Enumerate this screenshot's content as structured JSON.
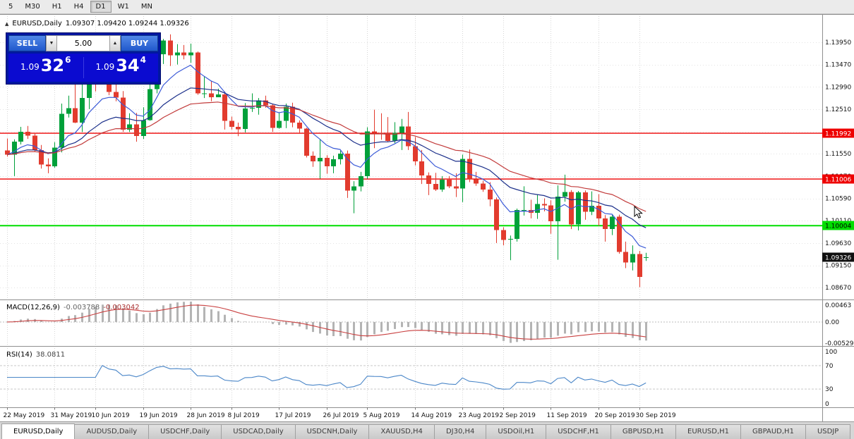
{
  "toolbar": {
    "timeframes": [
      {
        "label": "5",
        "active": false
      },
      {
        "label": "M30",
        "active": false
      },
      {
        "label": "H1",
        "active": false
      },
      {
        "label": "H4",
        "active": false
      },
      {
        "label": "D1",
        "active": true
      },
      {
        "label": "W1",
        "active": false
      },
      {
        "label": "MN",
        "active": false
      }
    ]
  },
  "icons": {
    "collapse": "▲",
    "volume_down": "▼",
    "volume_up": "▲"
  },
  "chart_header": {
    "symbol": "EURUSD,Daily",
    "ohlc": "1.09307 1.09420 1.09244 1.09326"
  },
  "trade_panel": {
    "sell_label": "SELL",
    "buy_label": "BUY",
    "volume": "5.00",
    "sell_price": {
      "prefix": "1.09",
      "big": "32",
      "sup": "6"
    },
    "buy_price": {
      "prefix": "1.09",
      "big": "34",
      "sup": "4"
    }
  },
  "macd_label": {
    "name": "MACD(12,26,9)",
    "main_value": "-0.003788",
    "signal_value": "-0.003042"
  },
  "rsi_label": {
    "name": "RSI(14)",
    "value": "38.0811"
  },
  "chart_data": {
    "type": "candlestick",
    "symbol": "EURUSD",
    "timeframe": "Daily",
    "current_ohlc": {
      "open": 1.09307,
      "high": 1.0942,
      "low": 1.09244,
      "close": 1.09326
    },
    "price_range": {
      "min": 1.0843,
      "max": 1.1451
    },
    "y_axis_labels": [
      "1.13950",
      "1.13470",
      "1.12990",
      "1.12510",
      "1.12030",
      "1.11550",
      "1.11070",
      "1.10590",
      "1.10110",
      "1.09630",
      "1.09150",
      "1.08670"
    ],
    "x_ticks": [
      {
        "i": 0,
        "label": "22 May 2019"
      },
      {
        "i": 7,
        "label": "31 May 2019"
      },
      {
        "i": 13,
        "label": "10 Jun 2019"
      },
      {
        "i": 20,
        "label": "19 Jun 2019"
      },
      {
        "i": 27,
        "label": "28 Jun 2019"
      },
      {
        "i": 33,
        "label": "8 Jul 2019"
      },
      {
        "i": 40,
        "label": "17 Jul 2019"
      },
      {
        "i": 47,
        "label": "26 Jul 2019"
      },
      {
        "i": 53,
        "label": "5 Aug 2019"
      },
      {
        "i": 60,
        "label": "14 Aug 2019"
      },
      {
        "i": 67,
        "label": "23 Aug 2019"
      },
      {
        "i": 73,
        "label": "2 Sep 2019"
      },
      {
        "i": 80,
        "label": "11 Sep 2019"
      },
      {
        "i": 87,
        "label": "20 Sep 2019"
      },
      {
        "i": 93,
        "label": "30 Sep 2019"
      }
    ],
    "candles": [
      [
        1.1162,
        1.1188,
        1.1149,
        1.1153
      ],
      [
        1.1153,
        1.1186,
        1.1107,
        1.1181
      ],
      [
        1.1181,
        1.1213,
        1.1175,
        1.1202
      ],
      [
        1.1202,
        1.1215,
        1.1187,
        1.1194
      ],
      [
        1.1194,
        1.12,
        1.1159,
        1.1163
      ],
      [
        1.1163,
        1.1174,
        1.1123,
        1.1132
      ],
      [
        1.1132,
        1.1145,
        1.1113,
        1.1128
      ],
      [
        1.1128,
        1.118,
        1.1125,
        1.1168
      ],
      [
        1.1168,
        1.1263,
        1.1158,
        1.1241
      ],
      [
        1.1241,
        1.128,
        1.1233,
        1.1253
      ],
      [
        1.1253,
        1.1307,
        1.1221,
        1.1222
      ],
      [
        1.1222,
        1.1309,
        1.1202,
        1.1275
      ],
      [
        1.1275,
        1.1348,
        1.1251,
        1.1334
      ],
      [
        1.1334,
        1.134,
        1.1289,
        1.1312
      ],
      [
        1.1312,
        1.1337,
        1.1306,
        1.1325
      ],
      [
        1.1325,
        1.1344,
        1.1281,
        1.1288
      ],
      [
        1.1288,
        1.1305,
        1.1268,
        1.1276
      ],
      [
        1.1276,
        1.129,
        1.1202,
        1.1207
      ],
      [
        1.1207,
        1.1242,
        1.1202,
        1.1218
      ],
      [
        1.1218,
        1.1243,
        1.1181,
        1.1193
      ],
      [
        1.1193,
        1.1255,
        1.1187,
        1.1227
      ],
      [
        1.1227,
        1.1317,
        1.1226,
        1.1294
      ],
      [
        1.1294,
        1.1378,
        1.1285,
        1.1369
      ],
      [
        1.1369,
        1.1402,
        1.1348,
        1.1399
      ],
      [
        1.1399,
        1.1412,
        1.1344,
        1.1367
      ],
      [
        1.1367,
        1.1391,
        1.1347,
        1.1373
      ],
      [
        1.1373,
        1.1389,
        1.1358,
        1.1367
      ],
      [
        1.1367,
        1.1392,
        1.1351,
        1.1373
      ],
      [
        1.1373,
        1.1375,
        1.1282,
        1.1285
      ],
      [
        1.1285,
        1.1322,
        1.1275,
        1.1285
      ],
      [
        1.1285,
        1.1311,
        1.1268,
        1.1277
      ],
      [
        1.1277,
        1.1295,
        1.1277,
        1.1283
      ],
      [
        1.1283,
        1.1289,
        1.1207,
        1.1226
      ],
      [
        1.1226,
        1.1235,
        1.1207,
        1.1213
      ],
      [
        1.1213,
        1.1222,
        1.1193,
        1.1208
      ],
      [
        1.1208,
        1.1264,
        1.1201,
        1.1252
      ],
      [
        1.1252,
        1.1285,
        1.1245,
        1.1254
      ],
      [
        1.1254,
        1.1275,
        1.1239,
        1.127
      ],
      [
        1.127,
        1.128,
        1.1254,
        1.1259
      ],
      [
        1.1259,
        1.1263,
        1.1202,
        1.1211
      ],
      [
        1.1211,
        1.1243,
        1.1209,
        1.1226
      ],
      [
        1.1226,
        1.1263,
        1.121,
        1.1256
      ],
      [
        1.1256,
        1.1265,
        1.1212,
        1.1222
      ],
      [
        1.1222,
        1.1227,
        1.1198,
        1.1209
      ],
      [
        1.1209,
        1.1211,
        1.1147,
        1.1151
      ],
      [
        1.1151,
        1.116,
        1.1127,
        1.1139
      ],
      [
        1.1139,
        1.1187,
        1.1101,
        1.1146
      ],
      [
        1.1146,
        1.1152,
        1.1112,
        1.1128
      ],
      [
        1.1128,
        1.1151,
        1.1113,
        1.1143
      ],
      [
        1.1143,
        1.1162,
        1.1132,
        1.1155
      ],
      [
        1.1155,
        1.1162,
        1.106,
        1.1076
      ],
      [
        1.1076,
        1.1096,
        1.1027,
        1.1085
      ],
      [
        1.1085,
        1.1116,
        1.1074,
        1.1107
      ],
      [
        1.1107,
        1.1212,
        1.1101,
        1.1203
      ],
      [
        1.1203,
        1.125,
        1.1167,
        1.12
      ],
      [
        1.12,
        1.1242,
        1.1185,
        1.1199
      ],
      [
        1.1199,
        1.1234,
        1.118,
        1.1183
      ],
      [
        1.1183,
        1.1223,
        1.1178,
        1.12
      ],
      [
        1.12,
        1.123,
        1.1163,
        1.1214
      ],
      [
        1.1214,
        1.1245,
        1.1163,
        1.1171
      ],
      [
        1.1171,
        1.1191,
        1.113,
        1.1139
      ],
      [
        1.1139,
        1.1163,
        1.109,
        1.1108
      ],
      [
        1.1108,
        1.1115,
        1.1066,
        1.109
      ],
      [
        1.109,
        1.1114,
        1.1075,
        1.1078
      ],
      [
        1.1078,
        1.1107,
        1.1073,
        1.1099
      ],
      [
        1.1099,
        1.1107,
        1.1081,
        1.1085
      ],
      [
        1.1085,
        1.1113,
        1.1062,
        1.108
      ],
      [
        1.108,
        1.1153,
        1.1051,
        1.1144
      ],
      [
        1.1144,
        1.1164,
        1.1094,
        1.11
      ],
      [
        1.11,
        1.1116,
        1.1086,
        1.1091
      ],
      [
        1.1091,
        1.1097,
        1.1073,
        1.1078
      ],
      [
        1.1078,
        1.1094,
        1.1042,
        1.1057
      ],
      [
        1.1057,
        1.1061,
        1.0963,
        1.0991
      ],
      [
        1.0991,
        1.0997,
        1.0958,
        1.097
      ],
      [
        1.097,
        1.0979,
        1.0926,
        1.0972
      ],
      [
        1.0972,
        1.1037,
        1.0966,
        1.1034
      ],
      [
        1.1034,
        1.1085,
        1.1022,
        1.1034
      ],
      [
        1.1034,
        1.1056,
        1.1016,
        1.1028
      ],
      [
        1.1028,
        1.1067,
        1.1015,
        1.1047
      ],
      [
        1.1047,
        1.1059,
        1.1031,
        1.1044
      ],
      [
        1.1044,
        1.1055,
        1.0983,
        1.101
      ],
      [
        1.101,
        1.1087,
        1.0927,
        1.1063
      ],
      [
        1.1063,
        1.111,
        1.1052,
        1.1073
      ],
      [
        1.1073,
        1.1077,
        1.0993,
        1.1003
      ],
      [
        1.1003,
        1.1075,
        1.099,
        1.1072
      ],
      [
        1.1072,
        1.1076,
        1.1013,
        1.103
      ],
      [
        1.103,
        1.1074,
        1.1023,
        1.1043
      ],
      [
        1.1043,
        1.1068,
        1.1,
        1.1016
      ],
      [
        1.1016,
        1.1023,
        1.0966,
        1.0993
      ],
      [
        1.0993,
        1.1024,
        1.098,
        1.102
      ],
      [
        1.102,
        1.1024,
        1.094,
        1.0944
      ],
      [
        1.0944,
        1.0966,
        1.0909,
        1.0921
      ],
      [
        1.0921,
        1.0958,
        1.0904,
        1.0939
      ],
      [
        1.0939,
        1.0946,
        1.0868,
        1.089
      ],
      [
        1.09307,
        1.0942,
        1.09244,
        1.09326
      ]
    ],
    "colors": {
      "up": "#00a03a",
      "down": "#e23b2e",
      "ma_fast": "#3c5bd7",
      "ma_mid": "#1b2f8a",
      "ma_slow": "#c23b3b",
      "macd_hist": "#b4b4b4",
      "macd_signal": "#c94040",
      "rsi": "#4a86c8"
    },
    "hlines": [
      {
        "price": 1.11992,
        "label": "1.11992",
        "color": "#ee0000",
        "width": 1.4,
        "tag_text": "#ffffff"
      },
      {
        "price": 1.11006,
        "label": "1.11006",
        "color": "#ee0000",
        "width": 1.4,
        "tag_text": "#ffffff"
      },
      {
        "price": 1.10004,
        "label": "1.10004",
        "color": "#00dd00",
        "width": 2,
        "tag_text": "#000000"
      }
    ],
    "current_price_tag": {
      "price": 1.09326,
      "label": "1.09326"
    },
    "moving_averages": [
      {
        "type": "ema",
        "period": 8,
        "color_key": "ma_fast"
      },
      {
        "type": "ema",
        "period": 20,
        "color_key": "ma_mid"
      },
      {
        "type": "ema",
        "period": 34,
        "color_key": "ma_slow"
      }
    ],
    "macd": {
      "fast": 12,
      "slow": 26,
      "signal": 9,
      "axis_labels": [
        "0.00463",
        "0.00",
        "-0.00529"
      ],
      "range": {
        "min": -0.00529,
        "max": 0.00463
      }
    },
    "rsi": {
      "period": 14,
      "axis_labels": [
        "100",
        "70",
        "30",
        "0"
      ],
      "levels": [
        70,
        30
      ],
      "range": {
        "min": 0,
        "max": 100
      }
    }
  },
  "bottom_tabs": [
    {
      "label": "EURUSD,Daily",
      "active": true
    },
    {
      "label": "AUDUSD,Daily",
      "active": false
    },
    {
      "label": "USDCHF,Daily",
      "active": false
    },
    {
      "label": "USDCAD,Daily",
      "active": false
    },
    {
      "label": "USDCNH,Daily",
      "active": false
    },
    {
      "label": "XAUUSD,H4",
      "active": false
    },
    {
      "label": "DJ30,H4",
      "active": false
    },
    {
      "label": "USDOil,H1",
      "active": false
    },
    {
      "label": "USDCHF,H1",
      "active": false
    },
    {
      "label": "GBPUSD,H1",
      "active": false
    },
    {
      "label": "EURUSD,H1",
      "active": false
    },
    {
      "label": "GBPAUD,H1",
      "active": false
    },
    {
      "label": "USDJP",
      "active": false
    }
  ]
}
